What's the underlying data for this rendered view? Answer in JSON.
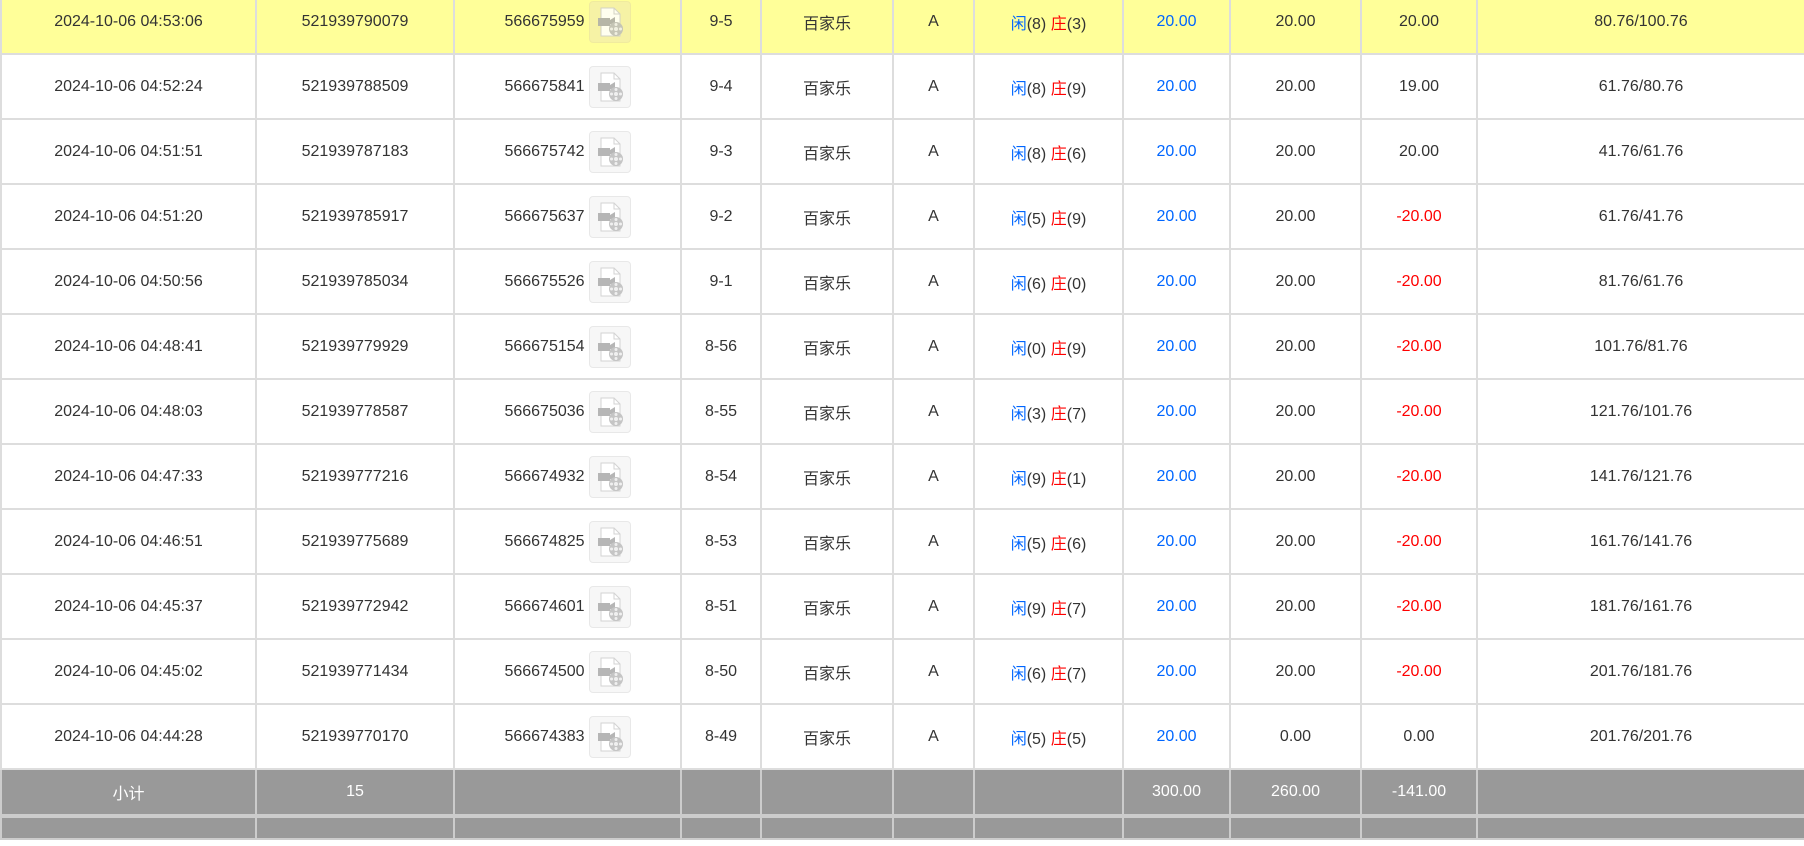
{
  "colors": {
    "highlight": "#ffff99",
    "blue": "#0066ff",
    "red": "#ff0000",
    "subtotal_bg": "#999999"
  },
  "rows": [
    {
      "time": "2024-10-06 04:53:06",
      "bet_id": "521939790079",
      "game_id": "566675959",
      "round": "9-5",
      "game": "百家乐",
      "table": "A",
      "player_label": "闲",
      "player": "(8)",
      "banker_label": "庄",
      "banker": "(3)",
      "bet": "20.00",
      "valid": "20.00",
      "win": "20.00",
      "win_neg": false,
      "balance": "80.76/100.76",
      "highlight": true
    },
    {
      "time": "2024-10-06 04:52:24",
      "bet_id": "521939788509",
      "game_id": "566675841",
      "round": "9-4",
      "game": "百家乐",
      "table": "A",
      "player_label": "闲",
      "player": "(8)",
      "banker_label": "庄",
      "banker": "(9)",
      "bet": "20.00",
      "valid": "20.00",
      "win": "19.00",
      "win_neg": false,
      "balance": "61.76/80.76"
    },
    {
      "time": "2024-10-06 04:51:51",
      "bet_id": "521939787183",
      "game_id": "566675742",
      "round": "9-3",
      "game": "百家乐",
      "table": "A",
      "player_label": "闲",
      "player": "(8)",
      "banker_label": "庄",
      "banker": "(6)",
      "bet": "20.00",
      "valid": "20.00",
      "win": "20.00",
      "win_neg": false,
      "balance": "41.76/61.76"
    },
    {
      "time": "2024-10-06 04:51:20",
      "bet_id": "521939785917",
      "game_id": "566675637",
      "round": "9-2",
      "game": "百家乐",
      "table": "A",
      "player_label": "闲",
      "player": "(5)",
      "banker_label": "庄",
      "banker": "(9)",
      "bet": "20.00",
      "valid": "20.00",
      "win": "-20.00",
      "win_neg": true,
      "balance": "61.76/41.76"
    },
    {
      "time": "2024-10-06 04:50:56",
      "bet_id": "521939785034",
      "game_id": "566675526",
      "round": "9-1",
      "game": "百家乐",
      "table": "A",
      "player_label": "闲",
      "player": "(6)",
      "banker_label": "庄",
      "banker": "(0)",
      "bet": "20.00",
      "valid": "20.00",
      "win": "-20.00",
      "win_neg": true,
      "balance": "81.76/61.76"
    },
    {
      "time": "2024-10-06 04:48:41",
      "bet_id": "521939779929",
      "game_id": "566675154",
      "round": "8-56",
      "game": "百家乐",
      "table": "A",
      "player_label": "闲",
      "player": "(0)",
      "banker_label": "庄",
      "banker": "(9)",
      "bet": "20.00",
      "valid": "20.00",
      "win": "-20.00",
      "win_neg": true,
      "balance": "101.76/81.76"
    },
    {
      "time": "2024-10-06 04:48:03",
      "bet_id": "521939778587",
      "game_id": "566675036",
      "round": "8-55",
      "game": "百家乐",
      "table": "A",
      "player_label": "闲",
      "player": "(3)",
      "banker_label": "庄",
      "banker": "(7)",
      "bet": "20.00",
      "valid": "20.00",
      "win": "-20.00",
      "win_neg": true,
      "balance": "121.76/101.76"
    },
    {
      "time": "2024-10-06 04:47:33",
      "bet_id": "521939777216",
      "game_id": "566674932",
      "round": "8-54",
      "game": "百家乐",
      "table": "A",
      "player_label": "闲",
      "player": "(9)",
      "banker_label": "庄",
      "banker": "(1)",
      "bet": "20.00",
      "valid": "20.00",
      "win": "-20.00",
      "win_neg": true,
      "balance": "141.76/121.76"
    },
    {
      "time": "2024-10-06 04:46:51",
      "bet_id": "521939775689",
      "game_id": "566674825",
      "round": "8-53",
      "game": "百家乐",
      "table": "A",
      "player_label": "闲",
      "player": "(5)",
      "banker_label": "庄",
      "banker": "(6)",
      "bet": "20.00",
      "valid": "20.00",
      "win": "-20.00",
      "win_neg": true,
      "balance": "161.76/141.76"
    },
    {
      "time": "2024-10-06 04:45:37",
      "bet_id": "521939772942",
      "game_id": "566674601",
      "round": "8-51",
      "game": "百家乐",
      "table": "A",
      "player_label": "闲",
      "player": "(9)",
      "banker_label": "庄",
      "banker": "(7)",
      "bet": "20.00",
      "valid": "20.00",
      "win": "-20.00",
      "win_neg": true,
      "balance": "181.76/161.76"
    },
    {
      "time": "2024-10-06 04:45:02",
      "bet_id": "521939771434",
      "game_id": "566674500",
      "round": "8-50",
      "game": "百家乐",
      "table": "A",
      "player_label": "闲",
      "player": "(6)",
      "banker_label": "庄",
      "banker": "(7)",
      "bet": "20.00",
      "valid": "20.00",
      "win": "-20.00",
      "win_neg": true,
      "balance": "201.76/181.76"
    },
    {
      "time": "2024-10-06 04:44:28",
      "bet_id": "521939770170",
      "game_id": "566674383",
      "round": "8-49",
      "game": "百家乐",
      "table": "A",
      "player_label": "闲",
      "player": "(5)",
      "banker_label": "庄",
      "banker": "(5)",
      "bet": "20.00",
      "valid": "0.00",
      "win": "0.00",
      "win_neg": false,
      "balance": "201.76/201.76"
    }
  ],
  "subtotal": {
    "label": "小计",
    "count": "15",
    "bet": "300.00",
    "valid": "260.00",
    "win": "-141.00"
  }
}
